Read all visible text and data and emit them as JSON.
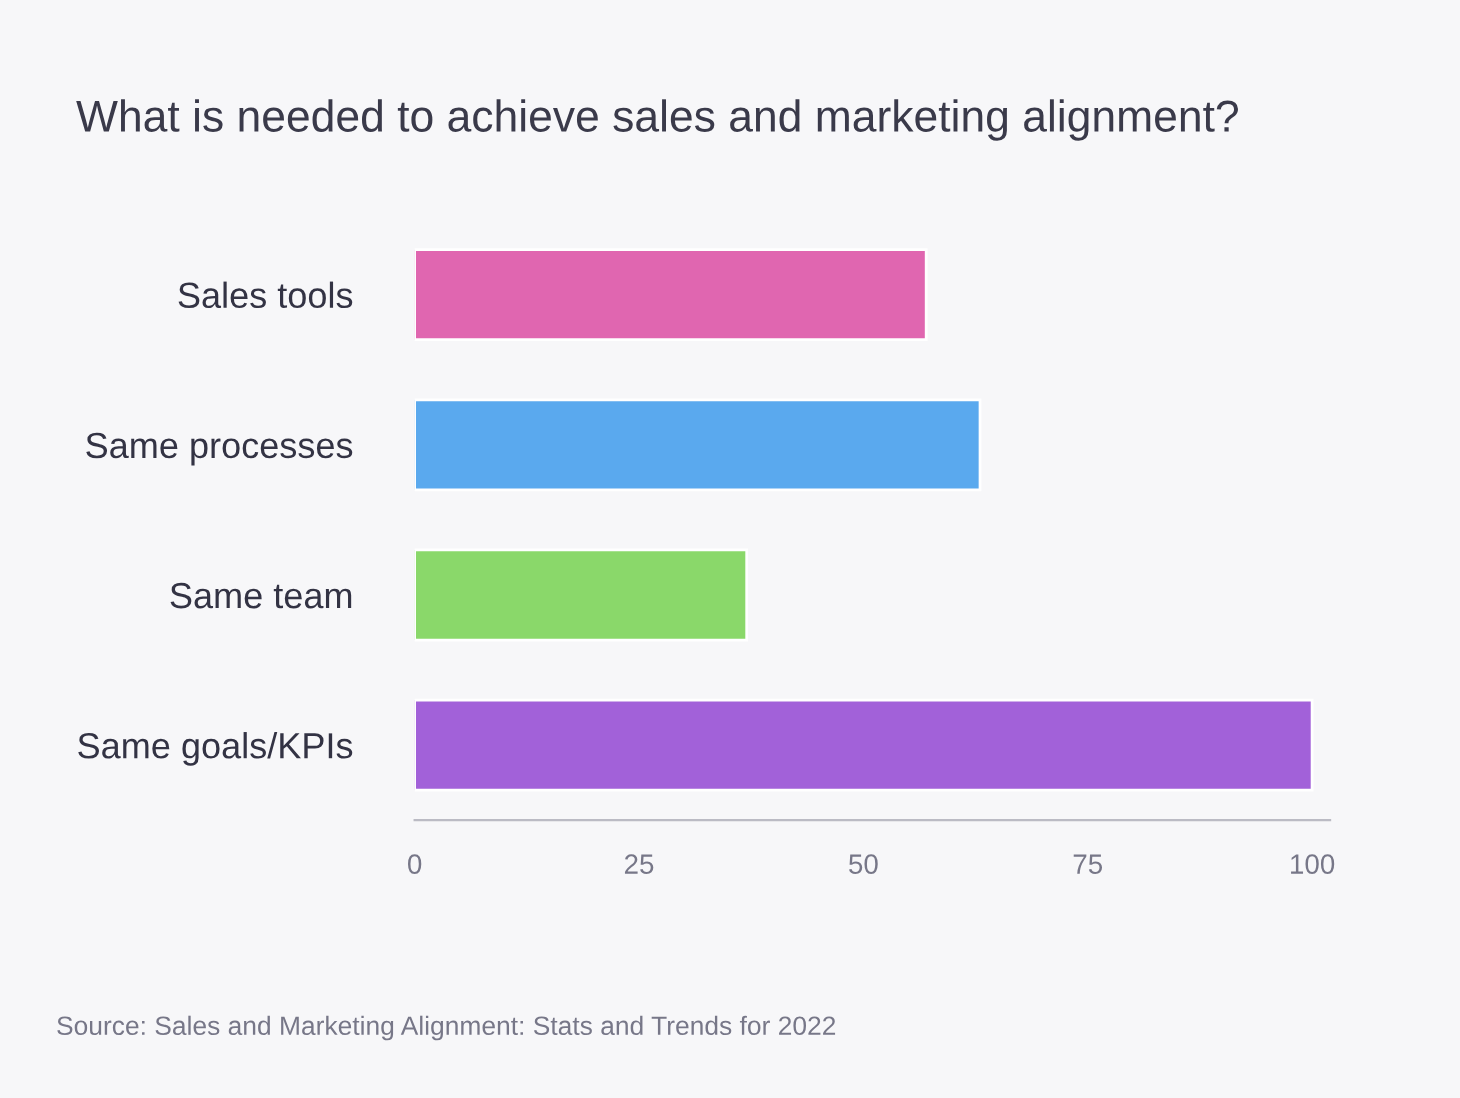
{
  "chart_data": {
    "type": "bar",
    "orientation": "horizontal",
    "title": "What is needed to achieve sales and marketing alignment?",
    "categories": [
      "Sales tools",
      "Same processes",
      "Same team",
      "Same goals/KPIs"
    ],
    "values": [
      57,
      63,
      37,
      100
    ],
    "colors": [
      "#e066b0",
      "#5aa9ee",
      "#8ad86a",
      "#a261d9"
    ],
    "xlim": [
      0,
      102
    ],
    "xticks": [
      0,
      25,
      50,
      75,
      100
    ],
    "grid": false,
    "legend": false,
    "annotations": [
      "Source: Sales and Marketing Alignment: Stats and Trends for 2022"
    ]
  }
}
